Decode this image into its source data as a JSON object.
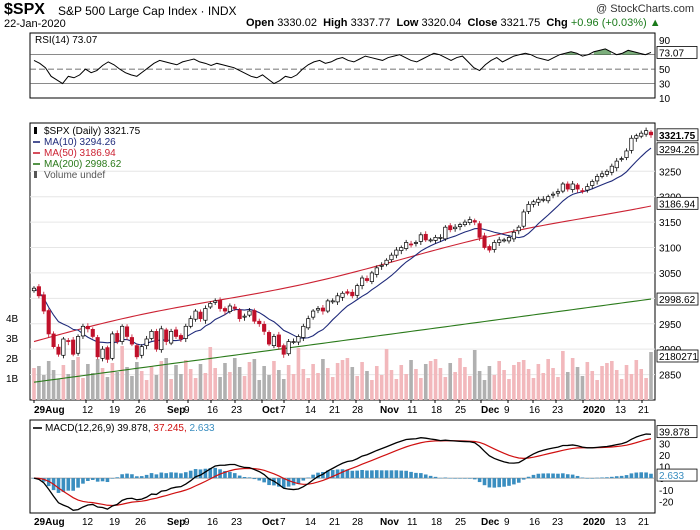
{
  "header": {
    "symbol": "$SPX",
    "name": "S&P 500 Large Cap Index",
    "exchange": "INDX",
    "watermark": "@ StockCharts.com",
    "date": "22-Jan-2020",
    "open_label": "Open",
    "open": "3330.02",
    "high_label": "High",
    "high": "3337.77",
    "low_label": "Low",
    "low": "3320.04",
    "close_label": "Close",
    "close": "3321.75",
    "chg_label": "Chg",
    "chg": "+0.96 (+0.03%)",
    "chg_icon": "triangle-up-icon"
  },
  "colors": {
    "ma10": "#1f2a7a",
    "ma50": "#cc2233",
    "ma200": "#2a7a1a",
    "up_volume": "#f2b8bc",
    "down_volume": "#b0b0b0",
    "macd_line": "#000000",
    "signal_line": "#d01010",
    "histogram": "#3a8ec0",
    "rsi_fill": "#5a9a5a"
  },
  "chart_data": [
    {
      "type": "line",
      "title": "RSI(14) 73.07",
      "series": [
        {
          "name": "RSI(14)",
          "last_value": 73.07,
          "values": [
            62,
            58,
            52,
            40,
            35,
            30,
            40,
            38,
            42,
            50,
            45,
            48,
            55,
            60,
            56,
            50,
            45,
            42,
            40,
            46,
            52,
            58,
            62,
            60,
            58,
            56,
            60,
            62,
            64,
            60,
            58,
            55,
            58,
            56,
            54,
            52,
            48,
            44,
            40,
            38,
            42,
            36,
            30,
            34,
            40,
            38,
            42,
            50,
            56,
            60,
            62,
            58,
            60,
            64,
            66,
            62,
            60,
            64,
            68,
            66,
            64,
            62,
            66,
            68,
            70,
            66,
            62,
            60,
            64,
            68,
            72,
            70,
            66,
            62,
            66,
            68,
            60,
            52,
            48,
            56,
            62,
            66,
            60,
            64,
            68,
            70,
            72,
            70,
            66,
            64,
            62,
            66,
            70,
            72,
            74,
            72,
            68,
            70,
            74,
            76,
            78,
            74,
            70,
            72,
            76,
            74,
            72,
            70,
            73.07
          ]
        }
      ],
      "ylim": [
        10,
        100
      ],
      "yticks": [
        90,
        70,
        50,
        30,
        10
      ],
      "reference_lines": [
        70,
        50,
        30
      ]
    },
    {
      "type": "candlestick",
      "title": "$SPX (Daily) 3321.75",
      "legend": [
        {
          "label": "$SPX (Daily) 3321.75"
        },
        {
          "label": "MA(10) 3294.26"
        },
        {
          "label": "MA(50) 3186.94"
        },
        {
          "label": "MA(200) 2998.62"
        },
        {
          "label": "Volume undef"
        }
      ],
      "ylim": [
        2800,
        3345
      ],
      "yticks": [
        3250,
        3200,
        3150,
        3100,
        3050,
        3000,
        2950,
        2900,
        2850
      ],
      "last_value_labels": [
        "3321.75",
        "3294.26",
        "3186.94",
        "2998.62",
        "2180271"
      ],
      "close": [
        3020,
        3005,
        2975,
        2930,
        2905,
        2890,
        2920,
        2915,
        2890,
        2925,
        2945,
        2940,
        2925,
        2885,
        2900,
        2880,
        2930,
        2915,
        2945,
        2925,
        2910,
        2885,
        2905,
        2920,
        2935,
        2900,
        2940,
        2915,
        2935,
        2925,
        2920,
        2945,
        2960,
        2975,
        2960,
        2980,
        2990,
        2995,
        2980,
        2975,
        2985,
        2980,
        2960,
        2965,
        2975,
        2955,
        2950,
        2935,
        2910,
        2925,
        2905,
        2890,
        2915,
        2915,
        2925,
        2945,
        2960,
        2975,
        2980,
        2975,
        2995,
        2995,
        3005,
        3010,
        3010,
        3005,
        3025,
        3040,
        3035,
        3050,
        3060,
        3065,
        3075,
        3085,
        3095,
        3100,
        3110,
        3105,
        3110,
        3125,
        3115,
        3115,
        3120,
        3120,
        3140,
        3135,
        3140,
        3145,
        3150,
        3155,
        3150,
        3120,
        3100,
        3095,
        3110,
        3115,
        3115,
        3120,
        3130,
        3140,
        3170,
        3185,
        3190,
        3195,
        3195,
        3200,
        3205,
        3210,
        3225,
        3215,
        3225,
        3215,
        3210,
        3220,
        3230,
        3240,
        3245,
        3250,
        3260,
        3270,
        3275,
        3290,
        3315,
        3320,
        3325,
        3330,
        3321.75
      ],
      "volume_axis_ticks": [
        "4B",
        "3B",
        "2B",
        "1B"
      ]
    },
    {
      "type": "line",
      "title": "MACD(12,26,9) 39.878, 37.245, 2.633",
      "series": [
        {
          "name": "MACD(12,26,9)",
          "last_value": 39.878
        },
        {
          "name": "signal",
          "last_value": 37.245
        },
        {
          "name": "histogram",
          "last_value": 2.633
        }
      ],
      "ylim": [
        -30,
        50
      ],
      "yticks": [
        40,
        30,
        20,
        10,
        0,
        -10,
        -20
      ]
    }
  ],
  "x_axis": {
    "labels": [
      {
        "text": "29Aug",
        "bold": true
      },
      {
        "text": "12",
        "bold": false
      },
      {
        "text": "19",
        "bold": false
      },
      {
        "text": "26",
        "bold": false
      },
      {
        "text": "Sep",
        "bold": true
      },
      {
        "text": "9",
        "bold": false
      },
      {
        "text": "16",
        "bold": false
      },
      {
        "text": "23",
        "bold": false
      },
      {
        "text": "Oct",
        "bold": true
      },
      {
        "text": "7",
        "bold": false
      },
      {
        "text": "14",
        "bold": false
      },
      {
        "text": "21",
        "bold": false
      },
      {
        "text": "28",
        "bold": false
      },
      {
        "text": "Nov",
        "bold": true
      },
      {
        "text": "11",
        "bold": false
      },
      {
        "text": "18",
        "bold": false
      },
      {
        "text": "25",
        "bold": false
      },
      {
        "text": "Dec",
        "bold": true
      },
      {
        "text": "9",
        "bold": false
      },
      {
        "text": "16",
        "bold": false
      },
      {
        "text": "23",
        "bold": false
      },
      {
        "text": "2020",
        "bold": true
      },
      {
        "text": "13",
        "bold": false
      },
      {
        "text": "21",
        "bold": false
      }
    ]
  }
}
